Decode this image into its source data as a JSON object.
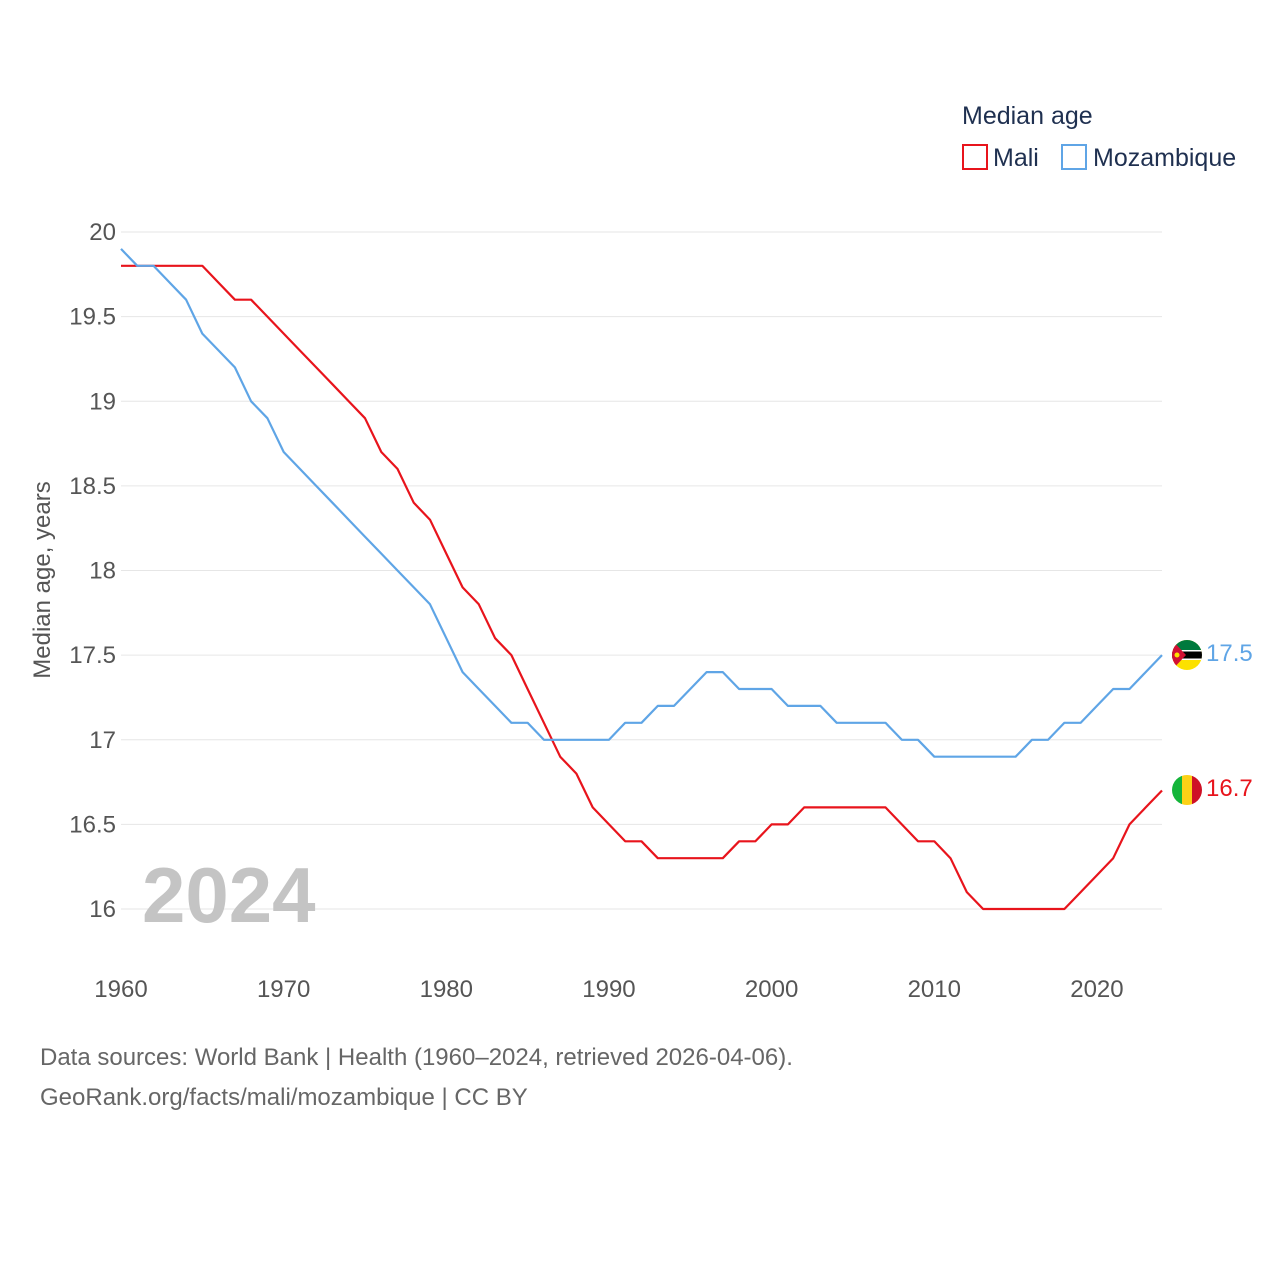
{
  "chart_data": {
    "type": "line",
    "legend_title": "Median age",
    "ylabel": "Median age, years",
    "xlabel": "",
    "xlim": [
      1960,
      2024
    ],
    "ylim": [
      16,
      20
    ],
    "x_ticks": [
      1960,
      1970,
      1980,
      1990,
      2000,
      2010,
      2020
    ],
    "y_ticks": [
      "16",
      "16.5",
      "17",
      "17.5",
      "18",
      "18.5",
      "19",
      "19.5",
      "20"
    ],
    "year_label": "2024",
    "legend_position": "top-right",
    "grid": true,
    "x": [
      1960,
      1961,
      1962,
      1963,
      1964,
      1965,
      1966,
      1967,
      1968,
      1969,
      1970,
      1971,
      1972,
      1973,
      1974,
      1975,
      1976,
      1977,
      1978,
      1979,
      1980,
      1981,
      1982,
      1983,
      1984,
      1985,
      1986,
      1987,
      1988,
      1989,
      1990,
      1991,
      1992,
      1993,
      1994,
      1995,
      1996,
      1997,
      1998,
      1999,
      2000,
      2001,
      2002,
      2003,
      2004,
      2005,
      2006,
      2007,
      2008,
      2009,
      2010,
      2011,
      2012,
      2013,
      2014,
      2015,
      2016,
      2017,
      2018,
      2019,
      2020,
      2021,
      2022,
      2023,
      2024
    ],
    "series": [
      {
        "name": "Mali",
        "color": "#e8141c",
        "end_label": "16.7",
        "flag": "mali-flag",
        "values": [
          19.8,
          19.8,
          19.8,
          19.8,
          19.8,
          19.8,
          19.7,
          19.6,
          19.6,
          19.5,
          19.4,
          19.3,
          19.2,
          19.1,
          19.0,
          18.9,
          18.7,
          18.6,
          18.4,
          18.3,
          18.1,
          17.9,
          17.8,
          17.6,
          17.5,
          17.3,
          17.1,
          16.9,
          16.8,
          16.6,
          16.5,
          16.4,
          16.4,
          16.3,
          16.3,
          16.3,
          16.3,
          16.3,
          16.4,
          16.4,
          16.5,
          16.5,
          16.6,
          16.6,
          16.6,
          16.6,
          16.6,
          16.6,
          16.5,
          16.4,
          16.4,
          16.3,
          16.1,
          16.0,
          16.0,
          16.0,
          16.0,
          16.0,
          16.0,
          16.1,
          16.2,
          16.3,
          16.5,
          16.6,
          16.7
        ]
      },
      {
        "name": "Mozambique",
        "color": "#5fa5e6",
        "end_label": "17.5",
        "flag": "mozambique-flag",
        "values": [
          19.9,
          19.8,
          19.8,
          19.7,
          19.6,
          19.4,
          19.3,
          19.2,
          19.0,
          18.9,
          18.7,
          18.6,
          18.5,
          18.4,
          18.3,
          18.2,
          18.1,
          18.0,
          17.9,
          17.8,
          17.6,
          17.4,
          17.3,
          17.2,
          17.1,
          17.1,
          17.0,
          17.0,
          17.0,
          17.0,
          17.0,
          17.1,
          17.1,
          17.2,
          17.2,
          17.3,
          17.4,
          17.4,
          17.3,
          17.3,
          17.3,
          17.2,
          17.2,
          17.2,
          17.1,
          17.1,
          17.1,
          17.1,
          17.0,
          17.0,
          16.9,
          16.9,
          16.9,
          16.9,
          16.9,
          16.9,
          17.0,
          17.0,
          17.1,
          17.1,
          17.2,
          17.3,
          17.3,
          17.4,
          17.5
        ]
      }
    ]
  },
  "footer": {
    "line1": "Data sources: World Bank | Health (1960–2024, retrieved 2026-04-06).",
    "line2": "GeoRank.org/facts/mali/mozambique | CC BY"
  }
}
